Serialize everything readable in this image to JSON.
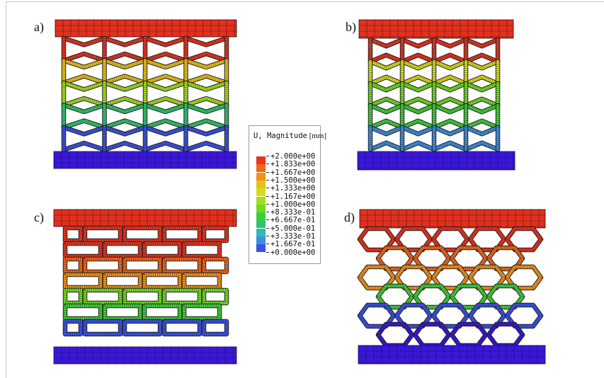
{
  "panels": {
    "a": {
      "label": "a)"
    },
    "b": {
      "label": "b)"
    },
    "c": {
      "label": "c)"
    },
    "d": {
      "label": "d)"
    }
  },
  "legend": {
    "quantity": "U, Magnitude",
    "unit": "[mm]",
    "levels": [
      {
        "value": "+2.000e+00",
        "color": "#e8331f"
      },
      {
        "value": "+1.833e+00",
        "color": "#f0661c"
      },
      {
        "value": "+1.667e+00",
        "color": "#f0931c"
      },
      {
        "value": "+1.500e+00",
        "color": "#e9c11b"
      },
      {
        "value": "+1.333e+00",
        "color": "#d3dd1d"
      },
      {
        "value": "+1.167e+00",
        "color": "#a6dd1e"
      },
      {
        "value": "+1.000e+00",
        "color": "#6fdb23"
      },
      {
        "value": "+8.333e-01",
        "color": "#3fcf3a"
      },
      {
        "value": "+6.667e-01",
        "color": "#2fc56e"
      },
      {
        "value": "+5.000e-01",
        "color": "#35b8b2"
      },
      {
        "value": "+3.333e-01",
        "color": "#3d8fe0"
      },
      {
        "value": "+1.667e-01",
        "color": "#3b52e6"
      },
      {
        "value": "+0.000e+00",
        "color": "#3a17d8"
      }
    ]
  },
  "colors": {
    "top_plate": "#e2301f",
    "bottom_plate": "#3a17d8",
    "mesh_line": "#2a0a0a"
  }
}
